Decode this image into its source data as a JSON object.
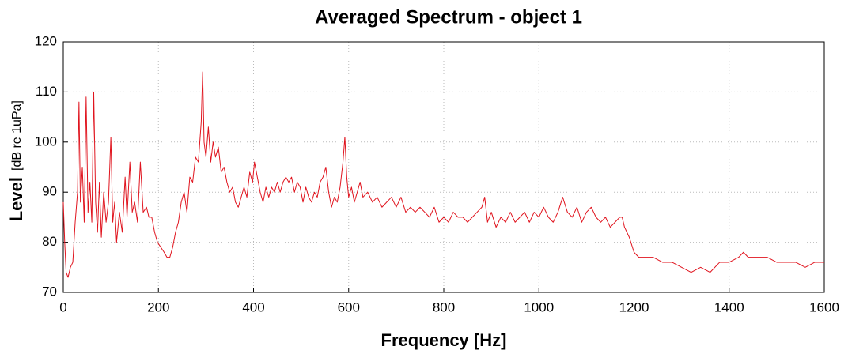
{
  "chart_data": {
    "type": "line",
    "title": "Averaged Spectrum - object 1",
    "x_label": "Frequency [Hz]",
    "y_label": "Level",
    "y_unit": "[dB re 1uPa]",
    "xlim": [
      0,
      1600
    ],
    "xticks": [
      0,
      200,
      400,
      600,
      800,
      1000,
      1200,
      1400,
      1600
    ],
    "ylim": [
      70,
      120
    ],
    "yticks": [
      70,
      80,
      90,
      100,
      110,
      120
    ],
    "grid": true,
    "series": [
      {
        "color": "#e0141e",
        "x": [
          0,
          3,
          6,
          10,
          15,
          20,
          25,
          30,
          33,
          36,
          40,
          44,
          48,
          52,
          56,
          60,
          64,
          68,
          72,
          76,
          80,
          85,
          90,
          95,
          100,
          104,
          108,
          112,
          118,
          124,
          130,
          134,
          140,
          145,
          150,
          156,
          162,
          168,
          175,
          180,
          186,
          192,
          198,
          205,
          212,
          218,
          224,
          230,
          236,
          242,
          248,
          254,
          260,
          266,
          272,
          278,
          284,
          290,
          293,
          296,
          300,
          305,
          310,
          315,
          320,
          326,
          332,
          338,
          344,
          350,
          356,
          362,
          368,
          374,
          380,
          386,
          392,
          398,
          402,
          408,
          414,
          420,
          426,
          432,
          438,
          444,
          450,
          456,
          462,
          468,
          474,
          480,
          486,
          492,
          498,
          504,
          510,
          516,
          522,
          528,
          534,
          540,
          546,
          552,
          558,
          564,
          570,
          576,
          582,
          588,
          592,
          596,
          600,
          606,
          612,
          618,
          624,
          630,
          640,
          650,
          660,
          670,
          680,
          690,
          700,
          710,
          720,
          730,
          740,
          750,
          760,
          770,
          780,
          790,
          800,
          810,
          820,
          830,
          840,
          850,
          860,
          870,
          880,
          886,
          892,
          900,
          910,
          920,
          930,
          940,
          950,
          960,
          970,
          980,
          990,
          1000,
          1010,
          1020,
          1030,
          1040,
          1050,
          1060,
          1070,
          1080,
          1090,
          1100,
          1110,
          1120,
          1130,
          1140,
          1150,
          1160,
          1170,
          1175,
          1180,
          1190,
          1200,
          1210,
          1220,
          1240,
          1260,
          1280,
          1300,
          1320,
          1340,
          1360,
          1380,
          1400,
          1420,
          1430,
          1440,
          1460,
          1480,
          1500,
          1520,
          1540,
          1560,
          1580,
          1600
        ],
        "values": [
          88,
          80,
          74,
          73,
          75,
          76,
          84,
          90,
          108,
          88,
          95,
          84,
          109,
          86,
          92,
          84,
          110,
          88,
          82,
          92,
          81,
          90,
          84,
          88,
          101,
          84,
          88,
          80,
          86,
          82,
          93,
          85,
          96,
          86,
          88,
          84,
          96,
          86,
          87,
          85,
          85,
          82,
          80,
          79,
          78,
          77,
          77,
          79,
          82,
          84,
          88,
          90,
          86,
          93,
          92,
          97,
          96,
          104,
          114,
          100,
          97,
          103,
          96,
          100,
          97,
          99,
          94,
          95,
          92,
          90,
          91,
          88,
          87,
          89,
          91,
          89,
          94,
          92,
          96,
          93,
          90,
          88,
          91,
          89,
          91,
          90,
          92,
          90,
          92,
          93,
          92,
          93,
          90,
          92,
          91,
          88,
          91,
          89,
          88,
          90,
          89,
          92,
          93,
          95,
          90,
          87,
          89,
          88,
          91,
          96,
          101,
          93,
          89,
          91,
          88,
          90,
          92,
          89,
          90,
          88,
          89,
          87,
          88,
          89,
          87,
          89,
          86,
          87,
          86,
          87,
          86,
          85,
          87,
          84,
          85,
          84,
          86,
          85,
          85,
          84,
          85,
          86,
          87,
          89,
          84,
          86,
          83,
          85,
          84,
          86,
          84,
          85,
          86,
          84,
          86,
          85,
          87,
          85,
          84,
          86,
          89,
          86,
          85,
          87,
          84,
          86,
          87,
          85,
          84,
          85,
          83,
          84,
          85,
          85,
          83,
          81,
          78,
          77,
          77,
          77,
          76,
          76,
          75,
          74,
          75,
          74,
          76,
          76,
          77,
          78,
          77,
          77,
          77,
          76,
          76,
          76,
          75,
          76,
          76
        ]
      }
    ]
  }
}
